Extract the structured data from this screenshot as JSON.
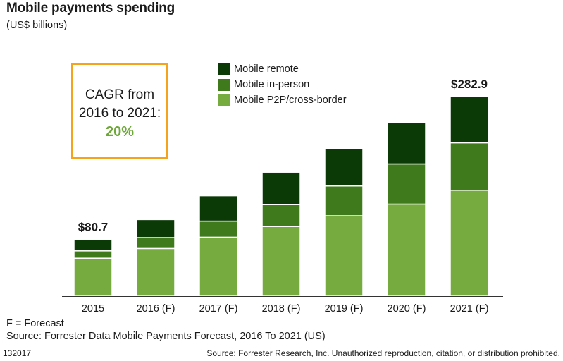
{
  "header": {
    "title": "Mobile payments spending",
    "subtitle": "(US$ billions)"
  },
  "cagr": {
    "line1": "CAGR from",
    "line2": "2016 to 2021:",
    "value": "20%"
  },
  "legend": {
    "items": [
      "Mobile remote",
      "Mobile in-person",
      "Mobile P2P/cross-border"
    ]
  },
  "footer": {
    "forecast_note": "F = Forecast",
    "source": "Source: Forrester Data Mobile Payments Forecast, 2016 To 2021 (US)",
    "code": "132017",
    "rights": "Source: Forrester Research, Inc. Unauthorized reproduction, citation, or distribution prohibited."
  },
  "colors": {
    "remote": "#0c3a06",
    "in_person": "#3f7b1c",
    "p2p": "#76ab40",
    "cagr_border": "#f5a31a",
    "cagr_value": "#6fa83a",
    "axis": "#333333"
  },
  "chart_data": {
    "type": "bar",
    "stacked": true,
    "title": "Mobile payments spending",
    "subtitle": "(US$ billions)",
    "xlabel": "",
    "ylabel": "",
    "categories": [
      "2015",
      "2016 (F)",
      "2017 (F)",
      "2018 (F)",
      "2019 (F)",
      "2020 (F)",
      "2021 (F)"
    ],
    "series": [
      {
        "name": "Mobile P2P/cross-border",
        "values": [
          53.8,
          67.6,
          83.6,
          98.8,
          114.0,
          130.5,
          150.2
        ]
      },
      {
        "name": "Mobile in-person",
        "values": [
          10.4,
          15.4,
          22.8,
          31.0,
          42.3,
          57.0,
          67.3
        ]
      },
      {
        "name": "Mobile remote",
        "values": [
          16.5,
          25.6,
          36.0,
          46.0,
          53.0,
          59.0,
          65.4
        ]
      }
    ],
    "totals": [
      80.7,
      null,
      null,
      null,
      null,
      null,
      282.9
    ],
    "data_labels": [
      "$80.7",
      "",
      "",
      "",
      "",
      "",
      "$282.9"
    ],
    "ylim": [
      0,
      290
    ],
    "grid": false,
    "legend_position": "top-center"
  }
}
